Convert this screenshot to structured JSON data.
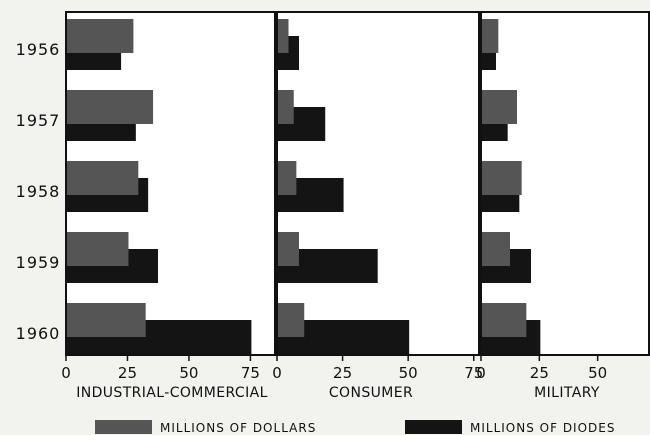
{
  "chart_data": {
    "type": "bar",
    "orientation": "horizontal",
    "categories": [
      "1956",
      "1957",
      "1958",
      "1959",
      "1960"
    ],
    "panels": [
      {
        "xlabel": "INDUSTRIAL-COMMERCIAL",
        "ticks": [
          0,
          25,
          50,
          75
        ],
        "xlim": [
          0,
          85
        ],
        "series": [
          {
            "key": "dollars",
            "values": [
              27,
              35,
              29,
              25,
              32
            ]
          },
          {
            "key": "diodes",
            "values": [
              22,
              28,
              33,
              37,
              75
            ]
          }
        ]
      },
      {
        "xlabel": "CONSUMER",
        "ticks": [
          0,
          25,
          50,
          75
        ],
        "xlim": [
          0,
          77
        ],
        "series": [
          {
            "key": "dollars",
            "values": [
              4,
              6,
              7,
              8,
              10
            ]
          },
          {
            "key": "diodes",
            "values": [
              8,
              18,
              25,
              38,
              50
            ]
          }
        ]
      },
      {
        "xlabel": "MILITARY",
        "ticks": [
          0,
          25,
          50
        ],
        "xlim": [
          0,
          72
        ],
        "series": [
          {
            "key": "dollars",
            "values": [
              7,
              15,
              17,
              12,
              19
            ]
          },
          {
            "key": "diodes",
            "values": [
              6,
              11,
              16,
              21,
              25
            ]
          }
        ]
      }
    ],
    "legend": {
      "placement": "bottom",
      "items": [
        {
          "key": "dollars",
          "label": "MILLIONS OF DOLLARS"
        },
        {
          "key": "diodes",
          "label": "MILLIONS OF DIODES"
        }
      ]
    },
    "colors": {
      "dollars": "#555555",
      "diodes": "#141414",
      "frame": "#111111",
      "plot_bg": "#ffffff"
    }
  }
}
